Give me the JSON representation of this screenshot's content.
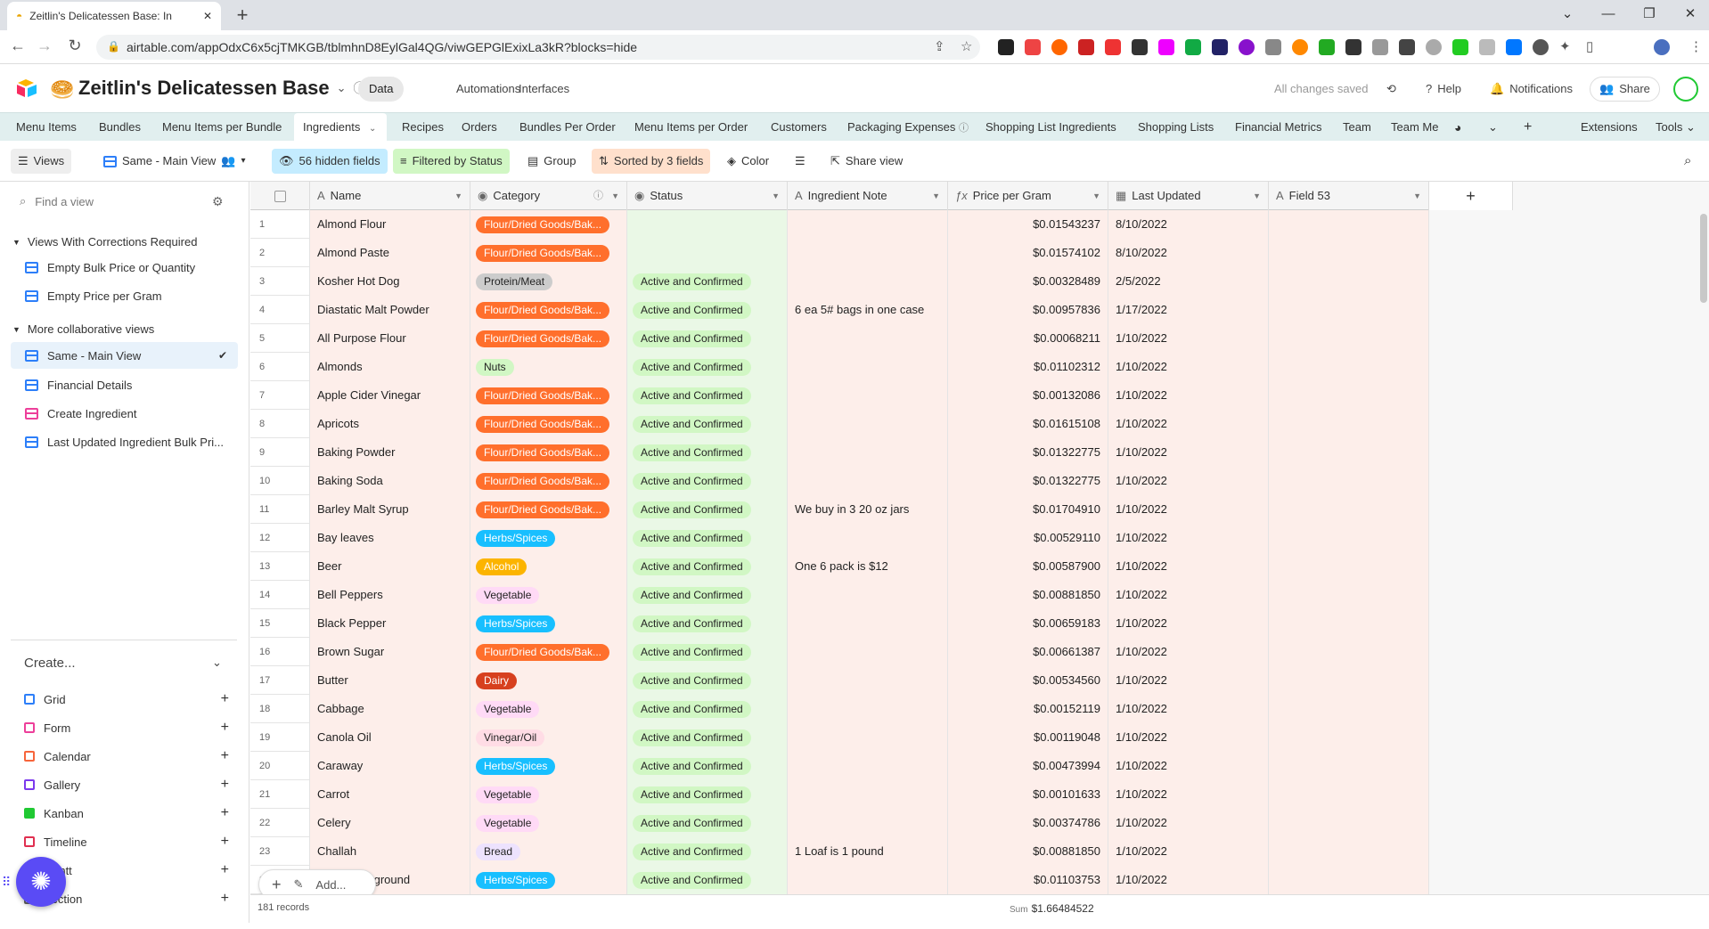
{
  "browser": {
    "tab_title": "Zeitlin's Delicatessen Base: In",
    "url": "airtable.com/appOdxC6x5cjTMKGB/tblmhnD8EylGal4QG/viwGEPGlExixLa3kR?blocks=hide"
  },
  "header": {
    "base_title": "Zeitlin's Delicatessen Base",
    "nav": [
      "Data",
      "Automations",
      "Interfaces"
    ],
    "save_status": "All changes saved",
    "help": "Help",
    "notifications": "Notifications",
    "share": "Share"
  },
  "tables": [
    "Menu Items",
    "Bundles",
    "Menu Items per Bundle",
    "Ingredients",
    "Recipes",
    "Orders",
    "Bundles Per Order",
    "Menu Items per Order",
    "Customers",
    "Packaging Expenses",
    "Shopping List Ingredients",
    "Shopping Lists",
    "Financial Metrics",
    "Team",
    "Team Me"
  ],
  "tables_right": {
    "extensions": "Extensions",
    "tools": "Tools"
  },
  "viewbar": {
    "views": "Views",
    "current_view": "Same - Main View",
    "hidden": "56 hidden fields",
    "filtered": "Filtered by Status",
    "group": "Group",
    "sorted": "Sorted by 3 fields",
    "color": "Color",
    "share_view": "Share view"
  },
  "sidebar": {
    "find_placeholder": "Find a view",
    "group1": "Views With Corrections Required",
    "group1_items": [
      "Empty Bulk Price or Quantity",
      "Empty Price per Gram"
    ],
    "group2": "More collaborative views",
    "group2_items": [
      "Same - Main View",
      "Financial Details",
      "Create Ingredient",
      "Last Updated Ingredient Bulk Pri..."
    ],
    "create": "Create...",
    "create_items": [
      "Grid",
      "Form",
      "Calendar",
      "Gallery",
      "Kanban",
      "Timeline",
      "Gantt",
      "Section"
    ]
  },
  "columns": [
    "Name",
    "Category",
    "Status",
    "Ingredient Note",
    "Price per Gram",
    "Last Updated",
    "Field 53"
  ],
  "category_colors": {
    "Flour/Dried Goods/Bak...": {
      "bg": "#ff6f2c",
      "fg": "#ffffff"
    },
    "Protein/Meat": {
      "bg": "#cccccc",
      "fg": "#222222"
    },
    "Nuts": {
      "bg": "#d1f7c4",
      "fg": "#222222"
    },
    "Herbs/Spices": {
      "bg": "#18bfff",
      "fg": "#ffffff"
    },
    "Alcohol": {
      "bg": "#fcb400",
      "fg": "#ffffff"
    },
    "Vegetable": {
      "bg": "#ffdaf6",
      "fg": "#222222"
    },
    "Dairy": {
      "bg": "#d7401e",
      "fg": "#ffffff"
    },
    "Vinegar/Oil": {
      "bg": "#ffdce5",
      "fg": "#222222"
    },
    "Bread": {
      "bg": "#ede2fe",
      "fg": "#222222"
    }
  },
  "rows": [
    {
      "n": "1",
      "name": "Almond Flour",
      "cat": "Flour/Dried Goods/Bak...",
      "status": "",
      "note": "",
      "price": "$0.01543237",
      "date": "8/10/2022"
    },
    {
      "n": "2",
      "name": "Almond Paste",
      "cat": "Flour/Dried Goods/Bak...",
      "status": "",
      "note": "",
      "price": "$0.01574102",
      "date": "8/10/2022"
    },
    {
      "n": "3",
      "name": "Kosher Hot Dog",
      "cat": "Protein/Meat",
      "status": "Active and Confirmed",
      "note": "",
      "price": "$0.00328489",
      "date": "2/5/2022"
    },
    {
      "n": "4",
      "name": "Diastatic Malt Powder",
      "cat": "Flour/Dried Goods/Bak...",
      "status": "Active and Confirmed",
      "note": "6 ea 5# bags in one case",
      "price": "$0.00957836",
      "date": "1/17/2022"
    },
    {
      "n": "5",
      "name": "All Purpose Flour",
      "cat": "Flour/Dried Goods/Bak...",
      "status": "Active and Confirmed",
      "note": "",
      "price": "$0.00068211",
      "date": "1/10/2022"
    },
    {
      "n": "6",
      "name": "Almonds",
      "cat": "Nuts",
      "status": "Active and Confirmed",
      "note": "",
      "price": "$0.01102312",
      "date": "1/10/2022"
    },
    {
      "n": "7",
      "name": "Apple Cider Vinegar",
      "cat": "Flour/Dried Goods/Bak...",
      "status": "Active and Confirmed",
      "note": "",
      "price": "$0.00132086",
      "date": "1/10/2022"
    },
    {
      "n": "8",
      "name": "Apricots",
      "cat": "Flour/Dried Goods/Bak...",
      "status": "Active and Confirmed",
      "note": "",
      "price": "$0.01615108",
      "date": "1/10/2022"
    },
    {
      "n": "9",
      "name": "Baking Powder",
      "cat": "Flour/Dried Goods/Bak...",
      "status": "Active and Confirmed",
      "note": "",
      "price": "$0.01322775",
      "date": "1/10/2022"
    },
    {
      "n": "10",
      "name": "Baking Soda",
      "cat": "Flour/Dried Goods/Bak...",
      "status": "Active and Confirmed",
      "note": "",
      "price": "$0.01322775",
      "date": "1/10/2022"
    },
    {
      "n": "11",
      "name": "Barley Malt Syrup",
      "cat": "Flour/Dried Goods/Bak...",
      "status": "Active and Confirmed",
      "note": "We buy in 3 20 oz jars",
      "price": "$0.01704910",
      "date": "1/10/2022"
    },
    {
      "n": "12",
      "name": "Bay leaves",
      "cat": "Herbs/Spices",
      "status": "Active and Confirmed",
      "note": "",
      "price": "$0.00529110",
      "date": "1/10/2022"
    },
    {
      "n": "13",
      "name": "Beer",
      "cat": "Alcohol",
      "status": "Active and Confirmed",
      "note": "One 6 pack is $12",
      "price": "$0.00587900",
      "date": "1/10/2022"
    },
    {
      "n": "14",
      "name": "Bell Peppers",
      "cat": "Vegetable",
      "status": "Active and Confirmed",
      "note": "",
      "price": "$0.00881850",
      "date": "1/10/2022"
    },
    {
      "n": "15",
      "name": "Black Pepper",
      "cat": "Herbs/Spices",
      "status": "Active and Confirmed",
      "note": "",
      "price": "$0.00659183",
      "date": "1/10/2022"
    },
    {
      "n": "16",
      "name": "Brown Sugar",
      "cat": "Flour/Dried Goods/Bak...",
      "status": "Active and Confirmed",
      "note": "",
      "price": "$0.00661387",
      "date": "1/10/2022"
    },
    {
      "n": "17",
      "name": "Butter",
      "cat": "Dairy",
      "status": "Active and Confirmed",
      "note": "",
      "price": "$0.00534560",
      "date": "1/10/2022"
    },
    {
      "n": "18",
      "name": "Cabbage",
      "cat": "Vegetable",
      "status": "Active and Confirmed",
      "note": "",
      "price": "$0.00152119",
      "date": "1/10/2022"
    },
    {
      "n": "19",
      "name": "Canola Oil",
      "cat": "Vinegar/Oil",
      "status": "Active and Confirmed",
      "note": "",
      "price": "$0.00119048",
      "date": "1/10/2022"
    },
    {
      "n": "20",
      "name": "Caraway",
      "cat": "Herbs/Spices",
      "status": "Active and Confirmed",
      "note": "",
      "price": "$0.00473994",
      "date": "1/10/2022"
    },
    {
      "n": "21",
      "name": "Carrot",
      "cat": "Vegetable",
      "status": "Active and Confirmed",
      "note": "",
      "price": "$0.00101633",
      "date": "1/10/2022"
    },
    {
      "n": "22",
      "name": "Celery",
      "cat": "Vegetable",
      "status": "Active and Confirmed",
      "note": "",
      "price": "$0.00374786",
      "date": "1/10/2022"
    },
    {
      "n": "23",
      "name": "Challah",
      "cat": "Bread",
      "status": "Active and Confirmed",
      "note": "1 Loaf is 1 pound",
      "price": "$0.00881850",
      "date": "1/10/2022"
    },
    {
      "n": "24",
      "name": "Coriander, ground",
      "cat": "Herbs/Spices",
      "status": "Active and Confirmed",
      "note": "",
      "price": "$0.01103753",
      "date": "1/10/2022"
    }
  ],
  "footer": {
    "records": "181 records",
    "sum_label": "Sum",
    "sum_value": "$1.66484522",
    "add": "Add..."
  }
}
